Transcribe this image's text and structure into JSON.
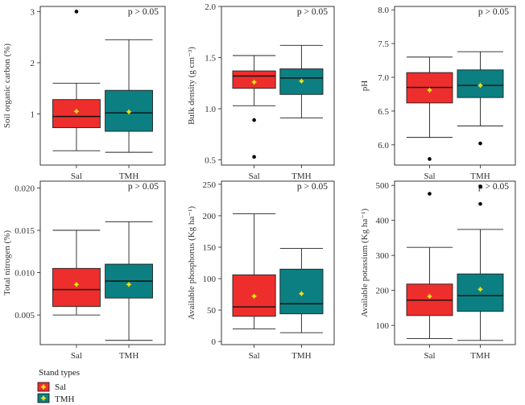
{
  "legend": {
    "title": "Stand types",
    "items": [
      {
        "label": "Sal",
        "color": "#ee2e2c"
      },
      {
        "label": "TMH",
        "color": "#0b7f82"
      }
    ]
  },
  "style": {
    "box_colors": {
      "Sal": "#ee2e2c",
      "TMH": "#0b7f82"
    },
    "mean_marker_color": "#e8e21a",
    "outlier_color": "#000000"
  },
  "chart_data": [
    {
      "type": "box",
      "ylabel": "Soil organic carbon (%)",
      "annotation": "p > 0.05",
      "categories": [
        "Sal",
        "TMH"
      ],
      "ylim": [
        0,
        3.1
      ],
      "yticks": [
        1,
        2,
        3
      ],
      "boxes": [
        {
          "name": "Sal",
          "whisker_low": 0.28,
          "q1": 0.73,
          "median": 0.95,
          "q3": 1.28,
          "whisker_high": 1.6,
          "mean": 1.05,
          "outliers": [
            3.0
          ]
        },
        {
          "name": "TMH",
          "whisker_low": 0.25,
          "q1": 0.66,
          "median": 1.02,
          "q3": 1.46,
          "whisker_high": 2.45,
          "mean": 1.04,
          "outliers": []
        }
      ]
    },
    {
      "type": "box",
      "ylabel": "Bulk density (g cm⁻³)",
      "annotation": "p > 0.05",
      "categories": [
        "Sal",
        "TMH"
      ],
      "ylim": [
        0.45,
        2.0
      ],
      "yticks": [
        0.5,
        1.0,
        1.5,
        2.0
      ],
      "boxes": [
        {
          "name": "Sal",
          "whisker_low": 1.03,
          "q1": 1.2,
          "median": 1.32,
          "q3": 1.37,
          "whisker_high": 1.52,
          "mean": 1.26,
          "outliers": [
            0.89,
            0.53
          ]
        },
        {
          "name": "TMH",
          "whisker_low": 0.91,
          "q1": 1.14,
          "median": 1.3,
          "q3": 1.39,
          "whisker_high": 1.62,
          "mean": 1.27,
          "outliers": []
        }
      ]
    },
    {
      "type": "box",
      "ylabel": "pH",
      "annotation": "p > 0.05",
      "categories": [
        "Sal",
        "TMH"
      ],
      "ylim": [
        5.7,
        8.05
      ],
      "yticks": [
        6.0,
        6.5,
        7.0,
        7.5,
        8.0
      ],
      "boxes": [
        {
          "name": "Sal",
          "whisker_low": 6.11,
          "q1": 6.62,
          "median": 6.85,
          "q3": 7.07,
          "whisker_high": 7.3,
          "mean": 6.81,
          "outliers": [
            5.79
          ]
        },
        {
          "name": "TMH",
          "whisker_low": 6.28,
          "q1": 6.7,
          "median": 6.88,
          "q3": 7.11,
          "whisker_high": 7.38,
          "mean": 6.88,
          "outliers": [
            6.02
          ]
        }
      ]
    },
    {
      "type": "box",
      "ylabel": "Total nitrogen (%)",
      "annotation": "p > 0.05",
      "categories": [
        "Sal",
        "TMH"
      ],
      "ylim": [
        0.0015,
        0.0208
      ],
      "yticks": [
        0.005,
        0.01,
        0.015,
        0.02
      ],
      "ytick_labels": [
        "0.005",
        "0.010",
        "0.015",
        "0.020"
      ],
      "boxes": [
        {
          "name": "Sal",
          "whisker_low": 0.005,
          "q1": 0.006,
          "median": 0.008,
          "q3": 0.0105,
          "whisker_high": 0.015,
          "mean": 0.0086,
          "outliers": []
        },
        {
          "name": "TMH",
          "whisker_low": 0.002,
          "q1": 0.007,
          "median": 0.009,
          "q3": 0.011,
          "whisker_high": 0.016,
          "mean": 0.0086,
          "outliers": []
        }
      ]
    },
    {
      "type": "box",
      "ylabel": "Available phosphorus (Kg ha⁻¹)",
      "annotation": "p > 0.05",
      "categories": [
        "Sal",
        "TMH"
      ],
      "ylim": [
        -5,
        255
      ],
      "yticks": [
        0,
        50,
        100,
        150,
        200,
        250
      ],
      "boxes": [
        {
          "name": "Sal",
          "whisker_low": 20,
          "q1": 40,
          "median": 55,
          "q3": 106,
          "whisker_high": 203,
          "mean": 72,
          "outliers": []
        },
        {
          "name": "TMH",
          "whisker_low": 14,
          "q1": 44,
          "median": 60,
          "q3": 115,
          "whisker_high": 148,
          "mean": 76,
          "outliers": []
        }
      ]
    },
    {
      "type": "box",
      "ylabel": "Available potassium (Kg ha⁻¹)",
      "annotation": "p > 0.05",
      "categories": [
        "Sal",
        "TMH"
      ],
      "ylim": [
        45,
        512
      ],
      "yticks": [
        100,
        200,
        300,
        400,
        500
      ],
      "boxes": [
        {
          "name": "Sal",
          "whisker_low": 62,
          "q1": 128,
          "median": 172,
          "q3": 218,
          "whisker_high": 323,
          "mean": 183,
          "outliers": [
            476
          ]
        },
        {
          "name": "TMH",
          "whisker_low": 57,
          "q1": 140,
          "median": 185,
          "q3": 247,
          "whisker_high": 374,
          "mean": 203,
          "outliers": [
            447,
            497
          ]
        }
      ]
    }
  ]
}
